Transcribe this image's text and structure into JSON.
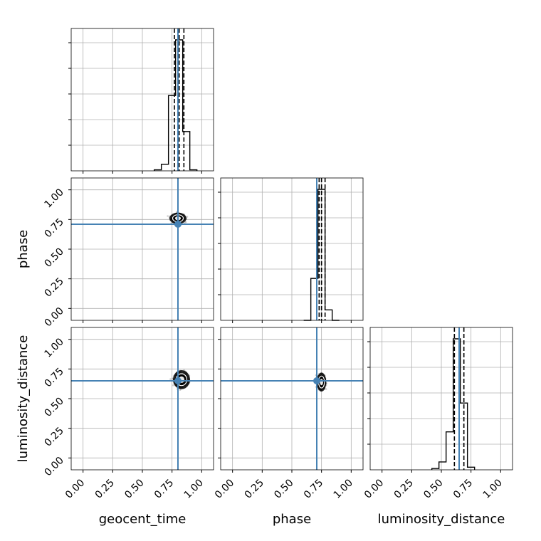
{
  "chart_data": {
    "type": "corner",
    "parameters": [
      {
        "key": "geocent_time",
        "label": "geocent_time",
        "truth": 0.8,
        "quantiles": [
          0.77,
          0.81,
          0.85
        ]
      },
      {
        "key": "phase",
        "label": "phase",
        "truth": 0.71,
        "quantiles": [
          0.73,
          0.75,
          0.78
        ]
      },
      {
        "key": "luminosity_distance",
        "label": "luminosity_distance",
        "truth": 0.65,
        "quantiles": [
          0.61,
          0.65,
          0.69
        ]
      }
    ],
    "xlim": [
      -0.1,
      1.1
    ],
    "ylim": [
      -0.1,
      1.1
    ],
    "ticks": [
      0.0,
      0.25,
      0.5,
      0.75,
      1.0
    ],
    "tick_labels": [
      "0.00",
      "0.25",
      "0.50",
      "0.75",
      "1.00"
    ],
    "grid": true,
    "truth_color": "#4682b4",
    "histograms": [
      {
        "param": "geocent_time",
        "bin_edges": [
          0.6,
          0.66,
          0.72,
          0.78,
          0.84,
          0.9,
          0.96
        ],
        "counts": [
          0.8,
          5.0,
          57.5,
          100.0,
          30.0,
          0.8
        ]
      },
      {
        "param": "phase",
        "bin_edges": [
          0.6,
          0.66,
          0.72,
          0.78,
          0.84,
          0.9
        ],
        "counts": [
          0.0,
          32.0,
          100.0,
          8.0,
          0.0
        ]
      },
      {
        "param": "luminosity_distance",
        "bin_edges": [
          0.42,
          0.48,
          0.54,
          0.6,
          0.66,
          0.72,
          0.78
        ],
        "counts": [
          1.0,
          6.0,
          29.0,
          100.0,
          51.0,
          2.0
        ]
      }
    ],
    "scatter_panels": [
      {
        "x": "geocent_time",
        "y": "phase",
        "center": [
          0.8,
          0.76
        ],
        "spread": [
          0.045,
          0.03
        ]
      },
      {
        "x": "geocent_time",
        "y": "luminosity_distance",
        "center": [
          0.83,
          0.66
        ],
        "spread": [
          0.045,
          0.05
        ]
      },
      {
        "x": "phase",
        "y": "luminosity_distance",
        "center": [
          0.75,
          0.64
        ],
        "spread": [
          0.025,
          0.05
        ]
      }
    ]
  }
}
